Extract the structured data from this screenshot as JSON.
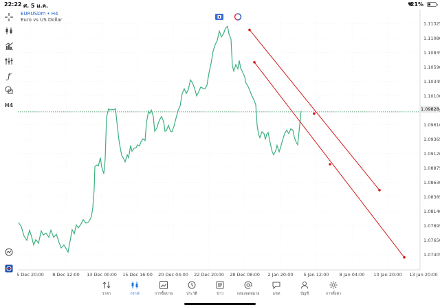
{
  "status_bar": {
    "time": "22:22",
    "date": "ศ. 5 ม.ค.",
    "battery_text": "21%"
  },
  "chart_header": {
    "symbol": "EURUSDm • H4",
    "description": "Euro vs US Dollar"
  },
  "left_toolbar": {
    "icons": [
      "crosshair-icon",
      "candlestick-type-icon",
      "indicators-icon",
      "objects-icon",
      "function-icon",
      "shapes-icon",
      "timeframe-label",
      "quick-trade-icon",
      "logo-icon"
    ],
    "timeframe": "H4"
  },
  "price_axis": {
    "labels": [
      "1.11325",
      "1.11080",
      "1.10835",
      "1.10590",
      "1.10345",
      "1.10100",
      "1.09855",
      "1.09610",
      "1.09365",
      "1.09120",
      "1.08875",
      "1.08630",
      "1.08385",
      "1.08140",
      "1.07895",
      "1.07650",
      "1.07405"
    ],
    "current_price": "1.09828"
  },
  "time_axis": {
    "labels": [
      "5 Dec 20:00",
      "8 Dec 12:00",
      "13 Dec 00:00",
      "15 Dec 16:00",
      "20 Dec 04:00",
      "22 Dec 20:00",
      "28 Dec 08:00",
      "2 Jan 20:00",
      "5 Jan 12:00",
      "8 Jan 04:00",
      "10 Jan 20:00",
      "13 Jan 20:00"
    ]
  },
  "colors": {
    "price_line": "#3daf7f",
    "trend_lines": "#d21c1c",
    "current_price_line": "#2e8b57",
    "active_nav": "#1e7be0"
  },
  "chart_data": {
    "type": "line",
    "title": "EURUSDm • H4",
    "series": [
      {
        "name": "EURUSDm",
        "points": [
          [
            27,
            1.0795
          ],
          [
            31,
            1.0788
          ],
          [
            35,
            1.0772
          ],
          [
            39,
            1.0765
          ],
          [
            43,
            1.0782
          ],
          [
            46,
            1.0771
          ],
          [
            49,
            1.0757
          ],
          [
            52,
            1.0766
          ],
          [
            56,
            1.076
          ],
          [
            60,
            1.0781
          ],
          [
            63,
            1.0774
          ],
          [
            67,
            1.0777
          ],
          [
            71,
            1.077
          ],
          [
            74,
            1.0782
          ],
          [
            78,
            1.077
          ],
          [
            82,
            1.0775
          ],
          [
            86,
            1.0761
          ],
          [
            89,
            1.0752
          ],
          [
            93,
            1.0757
          ],
          [
            96,
            1.0751
          ],
          [
            99,
            1.0745
          ],
          [
            102,
            1.0764
          ],
          [
            105,
            1.0783
          ],
          [
            108,
            1.0776
          ],
          [
            111,
            1.0791
          ],
          [
            114,
            1.0786
          ],
          [
            118,
            1.0793
          ],
          [
            121,
            1.08
          ],
          [
            125,
            1.0794
          ],
          [
            129,
            1.0796
          ],
          [
            133,
            1.0805
          ],
          [
            135,
            1.0821
          ],
          [
            137,
            1.0852
          ],
          [
            138,
            1.089
          ],
          [
            141,
            1.0893
          ],
          [
            143,
            1.0891
          ],
          [
            146,
            1.0905
          ],
          [
            148,
            1.0889
          ],
          [
            151,
            1.0878
          ],
          [
            153,
            1.0903
          ],
          [
            155,
            1.0974
          ],
          [
            158,
            1.0988
          ],
          [
            160,
            1.0986
          ],
          [
            163,
            1.0987
          ],
          [
            165,
            1.0986
          ],
          [
            168,
            1.0988
          ],
          [
            171,
            1.0955
          ],
          [
            173,
            1.0935
          ],
          [
            175,
            1.0921
          ],
          [
            177,
            1.0909
          ],
          [
            180,
            1.0903
          ],
          [
            182,
            1.0898
          ],
          [
            185,
            1.091
          ],
          [
            187,
            1.0905
          ],
          [
            190,
            1.0926
          ],
          [
            192,
            1.0916
          ],
          [
            195,
            1.0921
          ],
          [
            198,
            1.0922
          ],
          [
            200,
            1.0927
          ],
          [
            203,
            1.0925
          ],
          [
            205,
            1.0932
          ],
          [
            208,
            1.0937
          ],
          [
            211,
            1.0934
          ],
          [
            213,
            1.0964
          ],
          [
            216,
            1.0984
          ],
          [
            218,
            1.098
          ],
          [
            220,
            1.0986
          ],
          [
            223,
            1.0975
          ],
          [
            225,
            1.095
          ],
          [
            228,
            1.0955
          ],
          [
            230,
            1.0963
          ],
          [
            232,
            1.0969
          ],
          [
            235,
            1.0975
          ],
          [
            238,
            1.0966
          ],
          [
            240,
            1.095
          ],
          [
            242,
            1.0951
          ],
          [
            245,
            1.096
          ],
          [
            248,
            1.095
          ],
          [
            250,
            1.0949
          ],
          [
            253,
            1.0958
          ],
          [
            256,
            1.0972
          ],
          [
            259,
            1.0985
          ],
          [
            262,
            1.0993
          ],
          [
            265,
            1.1014
          ],
          [
            268,
            1.1022
          ],
          [
            271,
            1.1014
          ],
          [
            274,
            1.1021
          ],
          [
            277,
            1.1037
          ],
          [
            280,
            1.1032
          ],
          [
            283,
            1.1023
          ],
          [
            286,
            1.101
          ],
          [
            289,
            1.1017
          ],
          [
            292,
            1.1025
          ],
          [
            295,
            1.1023
          ],
          [
            298,
            1.1022
          ],
          [
            301,
            1.1028
          ],
          [
            304,
            1.1049
          ],
          [
            307,
            1.1065
          ],
          [
            310,
            1.1086
          ],
          [
            313,
            1.1097
          ],
          [
            316,
            1.1104
          ],
          [
            319,
            1.112
          ],
          [
            322,
            1.111
          ],
          [
            325,
            1.1115
          ],
          [
            328,
            1.1125
          ],
          [
            331,
            1.1128
          ],
          [
            333,
            1.1115
          ],
          [
            336,
            1.1106
          ],
          [
            338,
            1.1061
          ],
          [
            340,
            1.1052
          ],
          [
            343,
            1.1063
          ],
          [
            346,
            1.1056
          ],
          [
            348,
            1.107
          ],
          [
            350,
            1.1057
          ],
          [
            353,
            1.105
          ],
          [
            356,
            1.1042
          ],
          [
            358,
            1.1031
          ],
          [
            360,
            1.1028
          ],
          [
            363,
            1.102
          ],
          [
            366,
            1.1011
          ],
          [
            369,
            1.1004
          ],
          [
            372,
            1.0995
          ],
          [
            374,
            1.096
          ],
          [
            376,
            1.0945
          ],
          [
            378,
            1.0939
          ],
          [
            381,
            1.0949
          ],
          [
            384,
            1.0946
          ],
          [
            386,
            1.0936
          ],
          [
            388,
            1.0945
          ],
          [
            390,
            1.0948
          ],
          [
            393,
            1.093
          ],
          [
            396,
            1.0915
          ],
          [
            398,
            1.091
          ],
          [
            401,
            1.0917
          ],
          [
            403,
            1.0926
          ],
          [
            406,
            1.0915
          ],
          [
            408,
            1.0922
          ],
          [
            411,
            1.0935
          ],
          [
            414,
            1.0946
          ],
          [
            417,
            1.0952
          ],
          [
            420,
            1.0946
          ],
          [
            423,
            1.0954
          ],
          [
            426,
            1.0952
          ],
          [
            428,
            1.094
          ],
          [
            431,
            1.0931
          ],
          [
            433,
            1.0927
          ],
          [
            436,
            1.0961
          ],
          [
            438,
            1.0985
          ]
        ]
      }
    ],
    "trend_lines": [
      {
        "from": [
          363,
          1.1122
        ],
        "to": [
          552,
          1.085
        ],
        "mid_point": [
          457,
          1.098
        ]
      },
      {
        "from": [
          370,
          1.1067
        ],
        "to": [
          588,
          1.0736
        ],
        "mid_point": [
          480,
          1.0894
        ]
      }
    ],
    "ylim": [
      1.0738,
      1.114
    ],
    "current_price": 1.09828,
    "xlabel": "",
    "ylabel": ""
  },
  "bottom_nav": {
    "items": [
      {
        "name": "nav-quotes",
        "label": "ราคา",
        "icon": "quotes-icon"
      },
      {
        "name": "nav-chart",
        "label": "กราฟ",
        "icon": "chart-icon",
        "active": true
      },
      {
        "name": "nav-trade",
        "label": "การซื้อขาย",
        "icon": "trade-icon"
      },
      {
        "name": "nav-history",
        "label": "ประวัติ",
        "icon": "history-icon"
      },
      {
        "name": "nav-news",
        "label": "ข่าว",
        "icon": "news-icon"
      },
      {
        "name": "nav-mailbox",
        "label": "กล่องจดหมาย",
        "icon": "mailbox-icon"
      },
      {
        "name": "nav-chat",
        "label": "แชท",
        "icon": "chat-icon"
      },
      {
        "name": "nav-accounts",
        "label": "บัญชี",
        "icon": "accounts-icon"
      },
      {
        "name": "nav-settings",
        "label": "การตั้งค่า",
        "icon": "settings-icon"
      }
    ]
  }
}
